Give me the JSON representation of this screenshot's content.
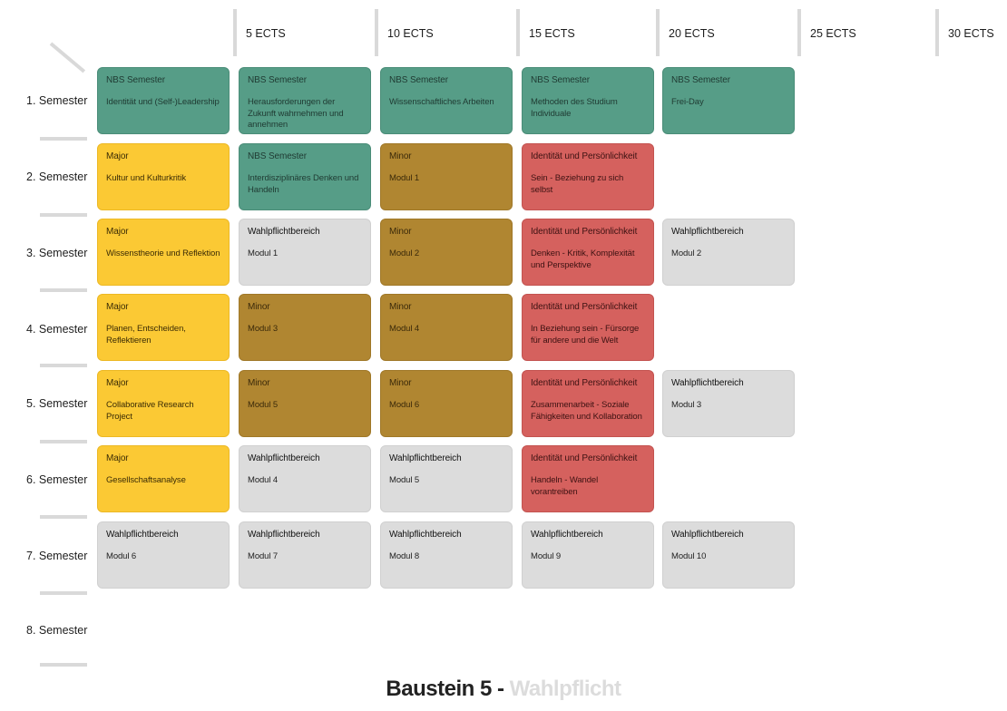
{
  "header": {
    "ects": [
      "5 ECTS",
      "10 ECTS",
      "15 ECTS",
      "20 ECTS",
      "25 ECTS",
      "30 ECTS"
    ]
  },
  "semesters": [
    "1. Semester",
    "2. Semester",
    "3. Semester",
    "4. Semester",
    "5. Semester",
    "6. Semester",
    "7. Semester",
    "8. Semester"
  ],
  "modules": [
    [
      {
        "category": "NBS Semester",
        "name": "Identität und (Self-)Leadership",
        "type": "nbs"
      },
      {
        "category": "NBS Semester",
        "name": "Herausforderungen der Zukunft wahrnehmen und annehmen",
        "type": "nbs"
      },
      {
        "category": "NBS Semester",
        "name": "Wissenschaftliches Arbeiten",
        "type": "nbs"
      },
      {
        "category": "NBS Semester",
        "name": "Methoden des Studium Individuale",
        "type": "nbs"
      },
      {
        "category": "NBS Semester",
        "name": "Frei-Day",
        "type": "nbs"
      }
    ],
    [
      {
        "category": "Major",
        "name": "Kultur und Kulturkritik",
        "type": "major"
      },
      {
        "category": "NBS Semester",
        "name": "Interdisziplinäres Denken und Handeln",
        "type": "nbs"
      },
      {
        "category": "Minor",
        "name": "Modul 1",
        "type": "minor"
      },
      {
        "category": "Identität und Persönlichkeit",
        "name": "Sein - Beziehung zu sich selbst",
        "type": "identity"
      },
      null
    ],
    [
      {
        "category": "Major",
        "name": "Wissenstheorie und Reflektion",
        "type": "major"
      },
      {
        "category": "Wahlpflichtbereich",
        "name": "Modul 1",
        "type": "wahl"
      },
      {
        "category": "Minor",
        "name": "Modul 2",
        "type": "minor"
      },
      {
        "category": "Identität und Persönlichkeit",
        "name": "Denken - Kritik, Komplexität und Perspektive",
        "type": "identity"
      },
      {
        "category": "Wahlpflichtbereich",
        "name": "Modul 2",
        "type": "wahl"
      }
    ],
    [
      {
        "category": "Major",
        "name": "Planen, Entscheiden, Reflektieren",
        "type": "major"
      },
      {
        "category": "Minor",
        "name": "Modul 3",
        "type": "minor"
      },
      {
        "category": "Minor",
        "name": "Modul 4",
        "type": "minor"
      },
      {
        "category": "Identität und Persönlichkeit",
        "name": "In Beziehung sein - Fürsorge für andere und die Welt",
        "type": "identity"
      },
      null
    ],
    [
      {
        "category": "Major",
        "name": "Collaborative Research Project",
        "type": "major"
      },
      {
        "category": "Minor",
        "name": "Modul 5",
        "type": "minor"
      },
      {
        "category": "Minor",
        "name": "Modul 6",
        "type": "minor"
      },
      {
        "category": "Identität und Persönlichkeit",
        "name": "Zusammenarbeit - Soziale Fähigkeiten und Kollaboration",
        "type": "identity"
      },
      {
        "category": "Wahlpflichtbereich",
        "name": "Modul 3",
        "type": "wahl"
      }
    ],
    [
      {
        "category": "Major",
        "name": "Gesellschaftsanalyse",
        "type": "major"
      },
      {
        "category": "Wahlpflichtbereich",
        "name": "Modul 4",
        "type": "wahl"
      },
      {
        "category": "Wahlpflichtbereich",
        "name": "Modul 5",
        "type": "wahl"
      },
      {
        "category": "Identität und Persönlichkeit",
        "name": "Handeln - Wandel vorantreiben",
        "type": "identity"
      },
      null
    ],
    [
      {
        "category": "Wahlpflichtbereich",
        "name": "Modul 6",
        "type": "wahl"
      },
      {
        "category": "Wahlpflichtbereich",
        "name": "Modul 7",
        "type": "wahl"
      },
      {
        "category": "Wahlpflichtbereich",
        "name": "Modul 8",
        "type": "wahl"
      },
      {
        "category": "Wahlpflichtbereich",
        "name": "Modul 9",
        "type": "wahl"
      },
      {
        "category": "Wahlpflichtbereich",
        "name": "Modul 10",
        "type": "wahl"
      }
    ],
    [
      null,
      null,
      null,
      null,
      null
    ]
  ],
  "colors": {
    "nbs": "#569d87",
    "major": "#fbc934",
    "minor": "#b08631",
    "identity": "#d5615e",
    "wahl": "#dcdcdc"
  },
  "footer": {
    "title": "Baustein 5 -",
    "subtitle": "Wahlpflicht"
  }
}
